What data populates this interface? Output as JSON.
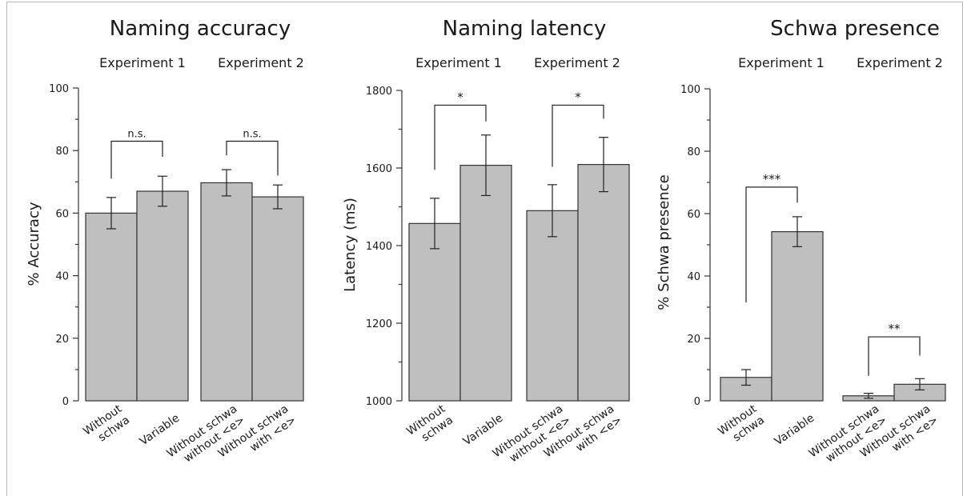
{
  "chart_data": [
    {
      "type": "bar",
      "title": "Naming accuracy",
      "ylabel": "% Accuracy",
      "ylim": [
        0,
        100
      ],
      "yticks": [
        0,
        20,
        40,
        60,
        80,
        100
      ],
      "group_labels": [
        "Experiment 1",
        "Experiment 2"
      ],
      "categories": [
        [
          "Without",
          "schwa"
        ],
        [
          "Variable"
        ],
        [
          "Without schwa",
          "without <e>"
        ],
        [
          "Without schwa",
          "with <e>"
        ]
      ],
      "values": [
        60,
        67,
        69.7,
        65.2
      ],
      "errors": [
        5,
        4.8,
        4.2,
        3.8
      ],
      "comparisons": [
        {
          "bars": [
            0,
            1
          ],
          "label": "n.s.",
          "bracket_y": 83,
          "left_drop_to": 71,
          "right_drop_to": 78
        },
        {
          "bars": [
            2,
            3
          ],
          "label": "n.s.",
          "bracket_y": 83,
          "left_drop_to": 78.5,
          "right_drop_to": 72
        }
      ]
    },
    {
      "type": "bar",
      "title": "Naming latency",
      "ylabel": "Latency (ms)",
      "ylim": [
        1000,
        1800
      ],
      "yticks": [
        1000,
        1200,
        1400,
        1600,
        1800
      ],
      "group_labels": [
        "Experiment 1",
        "Experiment 2"
      ],
      "categories": [
        [
          "Without",
          "schwa"
        ],
        [
          "Variable"
        ],
        [
          "Without schwa",
          "without <e>"
        ],
        [
          "Without schwa",
          "with <e>"
        ]
      ],
      "values": [
        1457,
        1607,
        1490,
        1609
      ],
      "errors": [
        65,
        78,
        67,
        70
      ],
      "comparisons": [
        {
          "bars": [
            0,
            1
          ],
          "label": "*",
          "bracket_y": 1762,
          "left_drop_to": 1595,
          "right_drop_to": 1720
        },
        {
          "bars": [
            2,
            3
          ],
          "label": "*",
          "bracket_y": 1762,
          "left_drop_to": 1603,
          "right_drop_to": 1727
        }
      ]
    },
    {
      "type": "bar",
      "title": "Schwa presence",
      "ylabel": "% Schwa presence",
      "ylim": [
        0,
        100
      ],
      "yticks": [
        0,
        20,
        40,
        60,
        80,
        100
      ],
      "group_labels": [
        "Experiment 1",
        "Experiment 2"
      ],
      "categories": [
        [
          "Without",
          "schwa"
        ],
        [
          "Variable"
        ],
        [
          "Without schwa",
          "without <e>"
        ],
        [
          "Without schwa",
          "with <e>"
        ]
      ],
      "values": [
        7.5,
        54.2,
        1.6,
        5.3
      ],
      "errors": [
        2.5,
        4.8,
        0.8,
        1.8
      ],
      "comparisons": [
        {
          "bars": [
            0,
            1
          ],
          "label": "***",
          "bracket_y": 68.5,
          "left_drop_to": 31.5,
          "right_drop_to": 63.5
        },
        {
          "bars": [
            2,
            3
          ],
          "label": "**",
          "bracket_y": 20.5,
          "left_drop_to": 8,
          "right_drop_to": 14.5
        }
      ]
    }
  ]
}
